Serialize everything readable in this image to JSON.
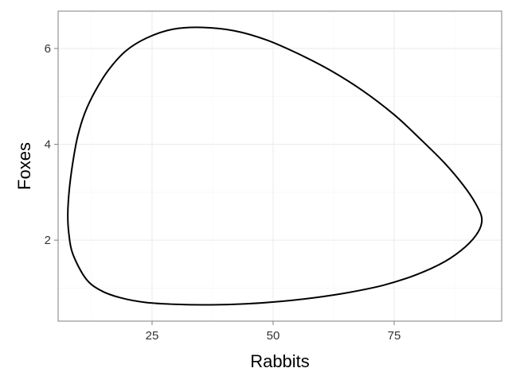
{
  "chart_data": {
    "type": "line",
    "title": "",
    "xlabel": "Rabbits",
    "ylabel": "Foxes",
    "xlim": [
      5.6,
      97.2
    ],
    "ylim": [
      0.31,
      6.78
    ],
    "x_ticks": [
      25,
      50,
      75
    ],
    "x_tick_labels": [
      "25",
      "50",
      "75"
    ],
    "y_ticks": [
      2,
      4,
      6
    ],
    "y_tick_labels": [
      "2",
      "4",
      "6"
    ],
    "grid": true,
    "legend": "none",
    "colors": {
      "line": "#000000",
      "grid_major": "#ebebeb",
      "grid_minor": "#f5f5f5",
      "border": "#7f7f7f"
    },
    "series": [
      {
        "x": [
          35.3,
          42.0,
          48.6,
          55.2,
          61.9,
          68.5,
          75.1,
          80.2,
          85.4,
          89.4,
          91.9,
          93.1,
          92.4,
          89.8,
          85.4,
          79.6,
          72.8,
          65.7,
          58.6,
          51.4,
          44.3,
          37.2,
          30.1,
          23.7,
          18.4,
          14.4,
          11.3,
          8.6,
          7.8,
          7.6,
          7.9,
          8.6,
          9.6,
          11.1,
          13.2,
          16.0,
          19.6,
          23.9,
          29.2,
          35.3
        ],
        "y": [
          6.44,
          6.37,
          6.18,
          5.89,
          5.54,
          5.12,
          4.61,
          4.13,
          3.61,
          3.13,
          2.75,
          2.45,
          2.18,
          1.87,
          1.55,
          1.28,
          1.06,
          0.91,
          0.8,
          0.72,
          0.67,
          0.65,
          0.66,
          0.7,
          0.8,
          0.95,
          1.2,
          1.72,
          2.15,
          2.55,
          3.05,
          3.6,
          4.15,
          4.65,
          5.1,
          5.55,
          5.95,
          6.22,
          6.4,
          6.44
        ]
      }
    ]
  }
}
